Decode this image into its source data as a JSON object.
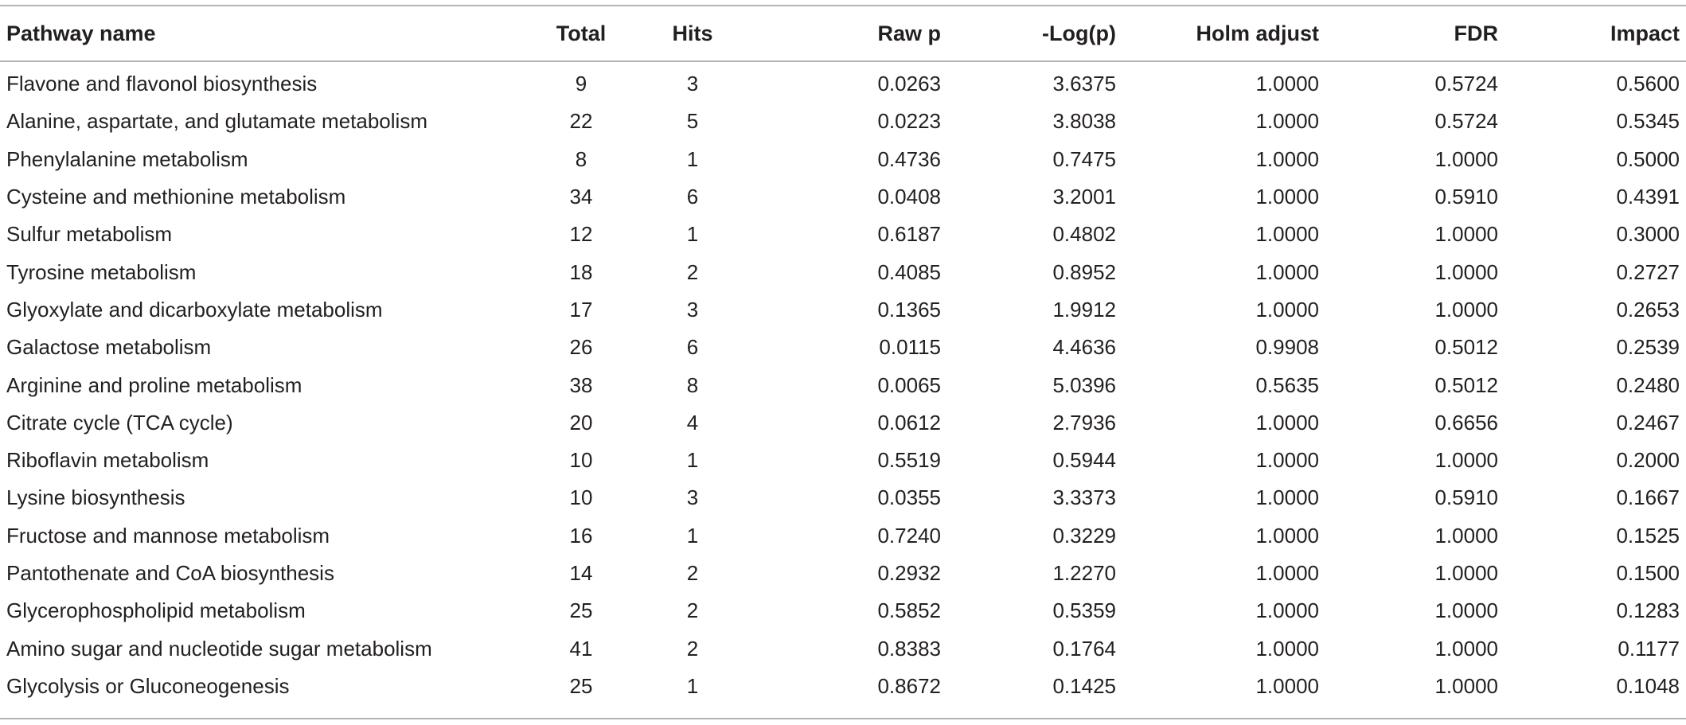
{
  "table": {
    "headers": {
      "pathway": "Pathway name",
      "total": "Total",
      "hits": "Hits",
      "raw_p": "Raw p",
      "neg_log_p": "-Log(p)",
      "holm": "Holm adjust",
      "fdr": "FDR",
      "impact": "Impact"
    },
    "rows": [
      {
        "pathway": "Flavone and flavonol biosynthesis",
        "total": "9",
        "hits": "3",
        "raw_p": "0.0263",
        "neg_log_p": "3.6375",
        "holm": "1.0000",
        "fdr": "0.5724",
        "impact": "0.5600"
      },
      {
        "pathway": "Alanine, aspartate, and glutamate metabolism",
        "total": "22",
        "hits": "5",
        "raw_p": "0.0223",
        "neg_log_p": "3.8038",
        "holm": "1.0000",
        "fdr": "0.5724",
        "impact": "0.5345"
      },
      {
        "pathway": "Phenylalanine metabolism",
        "total": "8",
        "hits": "1",
        "raw_p": "0.4736",
        "neg_log_p": "0.7475",
        "holm": "1.0000",
        "fdr": "1.0000",
        "impact": "0.5000"
      },
      {
        "pathway": "Cysteine and methionine metabolism",
        "total": "34",
        "hits": "6",
        "raw_p": "0.0408",
        "neg_log_p": "3.2001",
        "holm": "1.0000",
        "fdr": "0.5910",
        "impact": "0.4391"
      },
      {
        "pathway": "Sulfur metabolism",
        "total": "12",
        "hits": "1",
        "raw_p": "0.6187",
        "neg_log_p": "0.4802",
        "holm": "1.0000",
        "fdr": "1.0000",
        "impact": "0.3000"
      },
      {
        "pathway": "Tyrosine metabolism",
        "total": "18",
        "hits": "2",
        "raw_p": "0.4085",
        "neg_log_p": "0.8952",
        "holm": "1.0000",
        "fdr": "1.0000",
        "impact": "0.2727"
      },
      {
        "pathway": "Glyoxylate and dicarboxylate metabolism",
        "total": "17",
        "hits": "3",
        "raw_p": "0.1365",
        "neg_log_p": "1.9912",
        "holm": "1.0000",
        "fdr": "1.0000",
        "impact": "0.2653"
      },
      {
        "pathway": "Galactose metabolism",
        "total": "26",
        "hits": "6",
        "raw_p": "0.0115",
        "neg_log_p": "4.4636",
        "holm": "0.9908",
        "fdr": "0.5012",
        "impact": "0.2539"
      },
      {
        "pathway": "Arginine and proline metabolism",
        "total": "38",
        "hits": "8",
        "raw_p": "0.0065",
        "neg_log_p": "5.0396",
        "holm": "0.5635",
        "fdr": "0.5012",
        "impact": "0.2480"
      },
      {
        "pathway": "Citrate cycle (TCA cycle)",
        "total": "20",
        "hits": "4",
        "raw_p": "0.0612",
        "neg_log_p": "2.7936",
        "holm": "1.0000",
        "fdr": "0.6656",
        "impact": "0.2467"
      },
      {
        "pathway": "Riboflavin metabolism",
        "total": "10",
        "hits": "1",
        "raw_p": "0.5519",
        "neg_log_p": "0.5944",
        "holm": "1.0000",
        "fdr": "1.0000",
        "impact": "0.2000"
      },
      {
        "pathway": "Lysine biosynthesis",
        "total": "10",
        "hits": "3",
        "raw_p": "0.0355",
        "neg_log_p": "3.3373",
        "holm": "1.0000",
        "fdr": "0.5910",
        "impact": "0.1667"
      },
      {
        "pathway": "Fructose and mannose metabolism",
        "total": "16",
        "hits": "1",
        "raw_p": "0.7240",
        "neg_log_p": "0.3229",
        "holm": "1.0000",
        "fdr": "1.0000",
        "impact": "0.1525"
      },
      {
        "pathway": "Pantothenate and CoA biosynthesis",
        "total": "14",
        "hits": "2",
        "raw_p": "0.2932",
        "neg_log_p": "1.2270",
        "holm": "1.0000",
        "fdr": "1.0000",
        "impact": "0.1500"
      },
      {
        "pathway": "Glycerophospholipid metabolism",
        "total": "25",
        "hits": "2",
        "raw_p": "0.5852",
        "neg_log_p": "0.5359",
        "holm": "1.0000",
        "fdr": "1.0000",
        "impact": "0.1283"
      },
      {
        "pathway": "Amino sugar and nucleotide sugar metabolism",
        "total": "41",
        "hits": "2",
        "raw_p": "0.8383",
        "neg_log_p": "0.1764",
        "holm": "1.0000",
        "fdr": "1.0000",
        "impact": "0.1177"
      },
      {
        "pathway": "Glycolysis or Gluconeogenesis",
        "total": "25",
        "hits": "1",
        "raw_p": "0.8672",
        "neg_log_p": "0.1425",
        "holm": "1.0000",
        "fdr": "1.0000",
        "impact": "0.1048"
      }
    ]
  }
}
